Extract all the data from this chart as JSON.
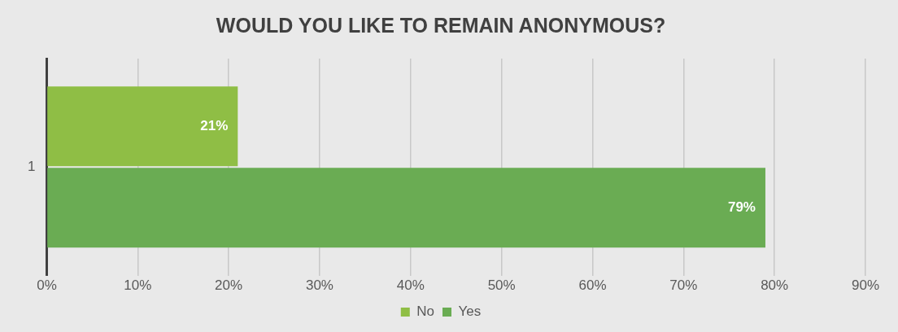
{
  "chart_data": {
    "type": "bar",
    "title": "WOULD YOU LIKE TO REMAIN ANONYMOUS?",
    "orientation": "horizontal",
    "categories": [
      "1"
    ],
    "series": [
      {
        "name": "No",
        "color": "#8fbe45",
        "values": [
          21
        ],
        "value_labels": [
          "21%"
        ]
      },
      {
        "name": "Yes",
        "color": "#6aac53",
        "values": [
          79
        ],
        "value_labels": [
          "79%"
        ]
      }
    ],
    "xlim": [
      0,
      90
    ],
    "xticks": [
      {
        "value": 0,
        "label": "0%"
      },
      {
        "value": 10,
        "label": "10%"
      },
      {
        "value": 20,
        "label": "20%"
      },
      {
        "value": 30,
        "label": "30%"
      },
      {
        "value": 40,
        "label": "40%"
      },
      {
        "value": 50,
        "label": "50%"
      },
      {
        "value": 60,
        "label": "60%"
      },
      {
        "value": 70,
        "label": "70%"
      },
      {
        "value": 80,
        "label": "80%"
      },
      {
        "value": 90,
        "label": "90%"
      }
    ],
    "grid": "x",
    "legend": "bottom"
  }
}
